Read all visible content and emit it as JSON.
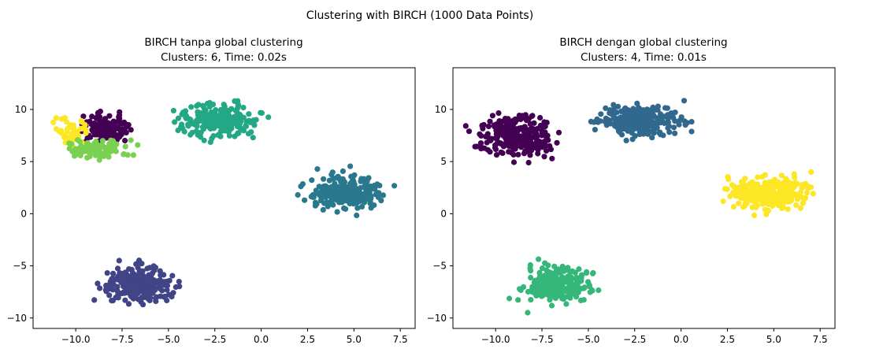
{
  "figure_title": "Clustering with BIRCH (1000 Data Points)",
  "chart_data": [
    {
      "type": "scatter",
      "title_line1": "BIRCH tanpa global clustering",
      "title_line2": "Clusters: 6, Time: 0.02s",
      "xlim": [
        -12.3,
        8.3
      ],
      "ylim": [
        -11.0,
        14.0
      ],
      "xticks": [
        -10.0,
        -7.5,
        -5.0,
        -2.5,
        0.0,
        2.5,
        5.0,
        7.5
      ],
      "xtick_labels": [
        "−10.0",
        "−7.5",
        "−5.0",
        "−2.5",
        "0.0",
        "2.5",
        "5.0",
        "7.5"
      ],
      "yticks": [
        -10,
        -5,
        0,
        5,
        10
      ],
      "ytick_labels": [
        "−10",
        "−5",
        "0",
        "5",
        "10"
      ],
      "clusters": [
        {
          "label": "blob A (upper-left, purple subcluster)",
          "color": "#440154",
          "center": [
            -8.3,
            8.2
          ],
          "spread": [
            0.8,
            0.75
          ],
          "n": 120,
          "x_range": [
            -9.8,
            -6.9
          ],
          "y_range": [
            6.9,
            9.9
          ]
        },
        {
          "label": "blob A (upper-left, yellow subcluster)",
          "color": "#fde725",
          "center": [
            -10.3,
            7.6
          ],
          "spread": [
            0.6,
            0.7
          ],
          "n": 50,
          "x_range": [
            -11.8,
            -9.2
          ],
          "y_range": [
            6.4,
            10.6
          ]
        },
        {
          "label": "blob A (upper-left, light green subcluster)",
          "color": "#7ad151",
          "center": [
            -8.9,
            6.2
          ],
          "spread": [
            0.9,
            0.45
          ],
          "n": 80,
          "x_range": [
            -10.4,
            -6.4
          ],
          "y_range": [
            4.4,
            7.4
          ]
        },
        {
          "label": "blob B (top-center)",
          "color": "#22a884",
          "center": [
            -2.3,
            9.0
          ],
          "spread": [
            1.1,
            0.75
          ],
          "n": 250,
          "x_range": [
            -5.1,
            0.6
          ],
          "y_range": [
            6.8,
            12.9
          ]
        },
        {
          "label": "blob C (right)",
          "color": "#2a788e",
          "center": [
            4.6,
            2.0
          ],
          "spread": [
            1.1,
            0.75
          ],
          "n": 250,
          "x_range": [
            1.9,
            7.2
          ],
          "y_range": [
            -0.5,
            4.6
          ]
        },
        {
          "label": "blob D (bottom)",
          "color": "#414487",
          "center": [
            -6.7,
            -6.8
          ],
          "spread": [
            0.85,
            0.8
          ],
          "n": 250,
          "x_range": [
            -9.3,
            -4.3
          ],
          "y_range": [
            -9.8,
            -4.3
          ]
        }
      ]
    },
    {
      "type": "scatter",
      "title_line1": "BIRCH dengan global clustering",
      "title_line2": "Clusters: 4, Time: 0.01s",
      "xlim": [
        -12.3,
        8.3
      ],
      "ylim": [
        -11.0,
        14.0
      ],
      "xticks": [
        -10.0,
        -7.5,
        -5.0,
        -2.5,
        0.0,
        2.5,
        5.0,
        7.5
      ],
      "xtick_labels": [
        "−10.0",
        "−7.5",
        "−5.0",
        "−2.5",
        "0.0",
        "2.5",
        "5.0",
        "7.5"
      ],
      "yticks": [
        -10,
        -5,
        0,
        5,
        10
      ],
      "ytick_labels": [
        "−10",
        "−5",
        "0",
        "5",
        "10"
      ],
      "clusters": [
        {
          "label": "blob A (upper-left)",
          "color": "#440154",
          "center": [
            -8.8,
            7.5
          ],
          "spread": [
            1.0,
            0.95
          ],
          "n": 250,
          "x_range": [
            -11.8,
            -5.5
          ],
          "y_range": [
            4.4,
            10.6
          ]
        },
        {
          "label": "blob B (top-center)",
          "color": "#31688e",
          "center": [
            -2.3,
            9.0
          ],
          "spread": [
            1.1,
            0.75
          ],
          "n": 250,
          "x_range": [
            -5.1,
            0.6
          ],
          "y_range": [
            6.8,
            12.9
          ]
        },
        {
          "label": "blob C (right)",
          "color": "#fde725",
          "center": [
            4.6,
            2.0
          ],
          "spread": [
            1.1,
            0.75
          ],
          "n": 250,
          "x_range": [
            1.9,
            7.2
          ],
          "y_range": [
            -0.5,
            4.6
          ]
        },
        {
          "label": "blob D (bottom)",
          "color": "#35b779",
          "center": [
            -6.7,
            -6.8
          ],
          "spread": [
            0.85,
            0.8
          ],
          "n": 250,
          "x_range": [
            -9.3,
            -4.3
          ],
          "y_range": [
            -9.8,
            -4.3
          ]
        }
      ]
    }
  ]
}
